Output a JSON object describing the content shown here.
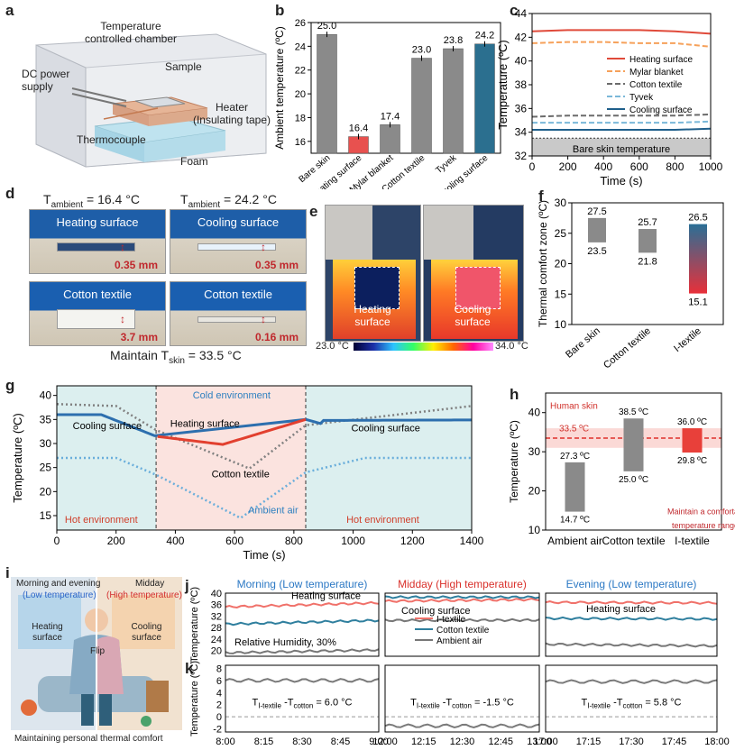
{
  "panel_letters": {
    "a": "a",
    "b": "b",
    "c": "c",
    "d": "d",
    "e": "e",
    "f": "f",
    "g": "g",
    "h": "h",
    "i": "i",
    "j": "j",
    "k": "k"
  },
  "panel_a": {
    "chamber": "Temperature controlled chamber",
    "sample": "Sample",
    "dc": "DC power supply",
    "heater": "Heater (Insulating tape)",
    "thermocouple": "Thermocouple",
    "foam": "Foam"
  },
  "panel_b": {
    "chart_data": {
      "type": "bar",
      "ylabel": "Ambient temperature (ºC)",
      "ylim": [
        15,
        26
      ],
      "yticks": [
        16,
        18,
        20,
        22,
        24,
        26
      ],
      "categories": [
        "Bare skin",
        "Heating surface",
        "Mylar blanket",
        "Cotton textile",
        "Tyvek",
        "Cooling surface"
      ],
      "values": [
        25.0,
        16.4,
        17.4,
        23.0,
        23.8,
        24.2
      ],
      "labels": [
        "25.0",
        "16.4",
        "17.4",
        "23.0",
        "23.8",
        "24.2"
      ],
      "colors": [
        "#8a8a8a",
        "#e8514f",
        "#8a8a8a",
        "#8a8a8a",
        "#8a8a8a",
        "#2b6f8f"
      ]
    }
  },
  "panel_c": {
    "chart_data": {
      "type": "line",
      "xlabel": "Time (s)",
      "ylabel": "Temperature (ºC)",
      "xlim": [
        0,
        1000
      ],
      "ylim": [
        32,
        44
      ],
      "xticks": [
        0,
        200,
        400,
        600,
        800,
        1000
      ],
      "yticks": [
        32,
        34,
        36,
        38,
        40,
        42,
        44
      ],
      "series": [
        {
          "name": "Heating surface",
          "color": "#e04a3a",
          "dash": "",
          "y": [
            42.5,
            42.6,
            42.6,
            42.6,
            42.5,
            42.3
          ]
        },
        {
          "name": "Mylar blanket",
          "color": "#f6a15a",
          "dash": "6,3",
          "y": [
            41.5,
            41.6,
            41.6,
            41.5,
            41.5,
            41.2
          ]
        },
        {
          "name": "Cotton textile",
          "color": "#6b6b6b",
          "dash": "6,3",
          "y": [
            35.3,
            35.4,
            35.4,
            35.4,
            35.4,
            35.5
          ]
        },
        {
          "name": "Tyvek",
          "color": "#7ab8d9",
          "dash": "6,3",
          "y": [
            34.8,
            34.8,
            34.8,
            34.8,
            34.8,
            34.9
          ]
        },
        {
          "name": "Cooling surface",
          "color": "#1f5f8b",
          "dash": "",
          "y": [
            34.2,
            34.2,
            34.2,
            34.2,
            34.2,
            34.3
          ]
        }
      ],
      "baseline": {
        "label": "Bare skin temperature",
        "y": 33.5
      }
    }
  },
  "panel_d": {
    "t_left": "T",
    "t_left_sub": "ambient",
    "t_left_val": " = 16.4 °C",
    "t_right": "T",
    "t_right_sub": "ambient",
    "t_right_val": " = 24.2 °C",
    "labels": [
      "Heating surface",
      "Cooling surface",
      "Cotton textile",
      "Cotton textile"
    ],
    "thick": [
      "0.35 mm",
      "0.35 mm",
      "3.7 mm",
      "0.16 mm"
    ],
    "maintain": "Maintain T",
    "maintain_sub": "skin",
    "maintain_val": " = 33.5 °C"
  },
  "panel_e": {
    "left_label": "Heating surface",
    "right_label": "Cooling surface",
    "scale_min": "23.0 °C",
    "scale_max": "34.0 °C"
  },
  "panel_f": {
    "chart_data": {
      "type": "bar",
      "ylabel": "Thermal comfort zone (ºC)",
      "ylim": [
        10,
        30
      ],
      "yticks": [
        10,
        15,
        20,
        25,
        30
      ],
      "categories": [
        "Bare skin",
        "Cotton textile",
        "I-textile"
      ],
      "ranges": [
        [
          23.5,
          27.5
        ],
        [
          21.8,
          25.7
        ],
        [
          15.1,
          26.5
        ]
      ],
      "high_labels": [
        "27.5",
        "25.7",
        "26.5"
      ],
      "low_labels": [
        "23.5",
        "21.8",
        "15.1"
      ]
    }
  },
  "panel_g": {
    "chart_data": {
      "type": "line",
      "xlabel": "Time (s)",
      "ylabel": "Temperature (ºC)",
      "xlim": [
        0,
        1400
      ],
      "ylim": [
        12,
        42
      ],
      "xticks": [
        0,
        200,
        400,
        600,
        800,
        1000,
        1200,
        1400
      ],
      "yticks": [
        15,
        20,
        25,
        30,
        35,
        40
      ],
      "series": [
        {
          "name": "Cooling surface",
          "color": "#2d6fae"
        },
        {
          "name": "Heating surface",
          "color": "#e2402f"
        },
        {
          "name": "Cotton textile",
          "color": "#808080"
        },
        {
          "name": "Ambient air",
          "color": "#6aaedb"
        }
      ],
      "annotations": {
        "cold": "Cold environment",
        "hot1": "Hot environment",
        "hot2": "Hot environment",
        "cooling1": "Cooling surface",
        "heating": "Heating surface",
        "cooling2": "Cooling surface",
        "cotton": "Cotton textile",
        "ambient": "Ambient air"
      },
      "switch_times": [
        335,
        840
      ]
    }
  },
  "panel_h": {
    "chart_data": {
      "type": "bar",
      "ylabel": "Temperature (ºC)",
      "ylim": [
        10,
        45
      ],
      "yticks": [
        10,
        20,
        30,
        40
      ],
      "categories": [
        "Ambient air",
        "Cotton textile",
        "I-textile"
      ],
      "ranges": [
        [
          14.7,
          27.3
        ],
        [
          25.0,
          38.5
        ],
        [
          29.8,
          36.0
        ]
      ],
      "high_labels": [
        "27.3 ºC",
        "38.5 ºC",
        "36.0 ºC"
      ],
      "low_labels": [
        "14.7 ºC",
        "25.0 ºC",
        "29.8 ºC"
      ],
      "skin_label": "Human skin",
      "skin_value": "33.5 ºC",
      "note": "Maintain a comfortable temperature range"
    }
  },
  "panel_i": {
    "top_left": "Morning and evening",
    "top_left2": "(Low temperature)",
    "top_right": "Midday",
    "top_right2": "(High temperature)",
    "heating": "Heating surface",
    "cooling": "Cooling surface",
    "flip": "Flip",
    "caption": "Maintaining personal thermal comfort"
  },
  "panel_j": {
    "ylabel": "Temperature (ºC)",
    "yticks": [
      20,
      24,
      28,
      32,
      36,
      40
    ],
    "titles": [
      "Morning (Low temperature)",
      "Midday (High temperature)",
      "Evening (Low temperature)"
    ],
    "labels": [
      "Heating surface",
      "Cooling surface",
      "Heating surface"
    ],
    "humidity": "Relative Humidity, 30%",
    "legend": [
      "I-textile",
      "Cotton textile",
      "Ambient air"
    ],
    "chart_data": {
      "type": "line",
      "series": [
        {
          "name": "I-textile",
          "color": "#f0716a",
          "levels": [
            [
              35.2,
              36.6
            ],
            [
              37.2,
              37.8
            ],
            [
              36.8,
              36.6
            ]
          ]
        },
        {
          "name": "Cotton textile",
          "color": "#2f7f9e",
          "levels": [
            [
              29.2,
              30.5
            ],
            [
              38.6,
              38.6
            ],
            [
              31.2,
              31.0
            ]
          ]
        },
        {
          "name": "Ambient air",
          "color": "#777777",
          "levels": [
            [
              19.2,
              20.2
            ],
            [
              30.5,
              30.6
            ],
            [
              22.2,
              21.6
            ]
          ]
        }
      ]
    }
  },
  "panel_k": {
    "ylabel": "Temperature (ºC)",
    "yticks": [
      -2,
      0,
      2,
      4,
      6,
      8
    ],
    "texts": [
      {
        "pre": "T",
        "a": "I-textile",
        "mid": " -T",
        "b": "cotton",
        "post": " = 6.0 °C"
      },
      {
        "pre": "T",
        "a": "I-textile",
        "mid": " -T",
        "b": "cotton",
        "post": " = -1.5 °C"
      },
      {
        "pre": "T",
        "a": "I-textile",
        "mid": " -T",
        "b": "cotton",
        "post": " = 5.8 °C"
      }
    ],
    "xticks": [
      [
        "8:00",
        "8:15",
        "8:30",
        "8:45",
        "9:00"
      ],
      [
        "12:00",
        "12:15",
        "12:30",
        "12:45",
        "13:00"
      ],
      [
        "17:00",
        "17:15",
        "17:30",
        "17:45",
        "18:00"
      ]
    ],
    "chart_data": {
      "type": "line",
      "diff": [
        6.0,
        -1.5,
        5.8
      ]
    }
  }
}
